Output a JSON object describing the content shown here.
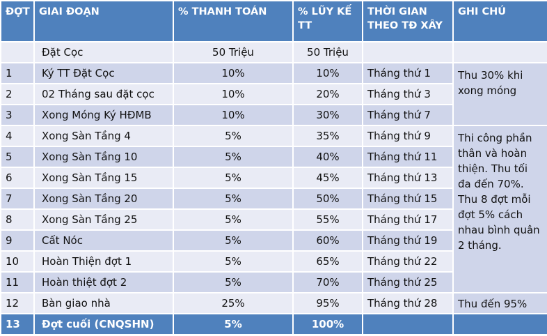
{
  "headers": {
    "dot": "ĐỢT",
    "giai_doan": "GIAI ĐOẠN",
    "thanh_toan": "% THANH TOÁN",
    "luy_ke": "% LŨY KẾ TT",
    "thoi_gian": "THỜI GIAN THEO TĐ XÂY",
    "ghi_chu": "GHI CHÚ"
  },
  "deposit": {
    "dot": "",
    "giai_doan": "Đặt Cọc",
    "thanh_toan": "50 Triệu",
    "luy_ke": "50 Triệu",
    "thoi_gian": ""
  },
  "rows": [
    {
      "dot": "1",
      "giai_doan": "Ký TT Đặt Cọc",
      "thanh_toan": "10%",
      "luy_ke": "10%",
      "thoi_gian": "Tháng thứ 1"
    },
    {
      "dot": "2",
      "giai_doan": "02 Tháng sau đặt cọc",
      "thanh_toan": "10%",
      "luy_ke": "20%",
      "thoi_gian": "Tháng thứ 3"
    },
    {
      "dot": "3",
      "giai_doan": "Xong Móng Ký HĐMB",
      "thanh_toan": "10%",
      "luy_ke": "30%",
      "thoi_gian": "Tháng thứ 7"
    },
    {
      "dot": "4",
      "giai_doan": "Xong Sàn Tầng 4",
      "thanh_toan": "5%",
      "luy_ke": "35%",
      "thoi_gian": "Tháng thứ 9"
    },
    {
      "dot": "5",
      "giai_doan": "Xong Sàn Tầng 10",
      "thanh_toan": "5%",
      "luy_ke": "40%",
      "thoi_gian": "Tháng thứ 11"
    },
    {
      "dot": "6",
      "giai_doan": "Xong Sàn Tầng 15",
      "thanh_toan": "5%",
      "luy_ke": "45%",
      "thoi_gian": "Tháng thứ 13"
    },
    {
      "dot": "7",
      "giai_doan": "Xong Sàn Tầng 20",
      "thanh_toan": "5%",
      "luy_ke": "50%",
      "thoi_gian": "Tháng thứ 15"
    },
    {
      "dot": "8",
      "giai_doan": "Xong Sàn Tầng 25",
      "thanh_toan": "5%",
      "luy_ke": "55%",
      "thoi_gian": "Tháng thứ 17"
    },
    {
      "dot": "9",
      "giai_doan": "Cất Nóc",
      "thanh_toan": "5%",
      "luy_ke": "60%",
      "thoi_gian": "Tháng thứ 19"
    },
    {
      "dot": "10",
      "giai_doan": "Hoàn Thiện đợt 1",
      "thanh_toan": "5%",
      "luy_ke": "65%",
      "thoi_gian": "Tháng thứ 22"
    },
    {
      "dot": "11",
      "giai_doan": "Hoàn thiệt đợt 2",
      "thanh_toan": "5%",
      "luy_ke": "70%",
      "thoi_gian": "Tháng thứ 25"
    },
    {
      "dot": "12",
      "giai_doan": "Bàn giao nhà",
      "thanh_toan": "25%",
      "luy_ke": "95%",
      "thoi_gian": "Tháng thứ 28"
    }
  ],
  "final": {
    "dot": "13",
    "giai_doan": "Đợt cuối (CNQSHN)",
    "thanh_toan": "5%",
    "luy_ke": "100%",
    "thoi_gian": ""
  },
  "notes": {
    "foundation": "Thu 30% khi xong móng",
    "construction": "Thi công phần thân và hoàn thiện. Thu tối đa đến 70%. Thu 8 đợt mỗi đợt 5% cách nhau bình quân 2 tháng.",
    "handover": "Thu đến 95%"
  }
}
